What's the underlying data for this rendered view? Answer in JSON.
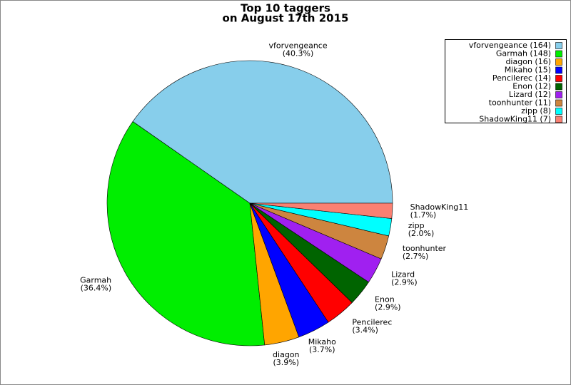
{
  "chart_data": {
    "type": "pie",
    "title": "Top 10 taggers",
    "subtitle": "on August 17th 2015",
    "categories": [
      "vforvengeance",
      "Garmah",
      "diagon",
      "Mikaho",
      "Pencilerec",
      "Enon",
      "Lizard",
      "toonhunter",
      "zipp",
      "ShadowKing11"
    ],
    "values": [
      164,
      148,
      16,
      15,
      14,
      12,
      12,
      11,
      8,
      7
    ],
    "value_labels": [
      "(40.3%)",
      "(36.4%)",
      "(3.9%)",
      "(3.7%)",
      "(3.4%)",
      "(2.9%)",
      "(2.9%)",
      "(2.7%)",
      "(2.0%)",
      "(1.7%)"
    ],
    "legend_labels": [
      "vforvengeance (164)",
      "Garmah (148)",
      "diagon (16)",
      "Mikaho (15)",
      "Pencilerec (14)",
      "Enon (12)",
      "Lizard (12)",
      "toonhunter (11)",
      "zipp (8)",
      "ShadowKing11 (7)"
    ],
    "colors": [
      "#87ceeb",
      "#00ee00",
      "#ffa500",
      "#0000ff",
      "#ff0000",
      "#006400",
      "#a020f0",
      "#cd853f",
      "#00ffff",
      "#fa8072"
    ],
    "legend": "top-right"
  }
}
